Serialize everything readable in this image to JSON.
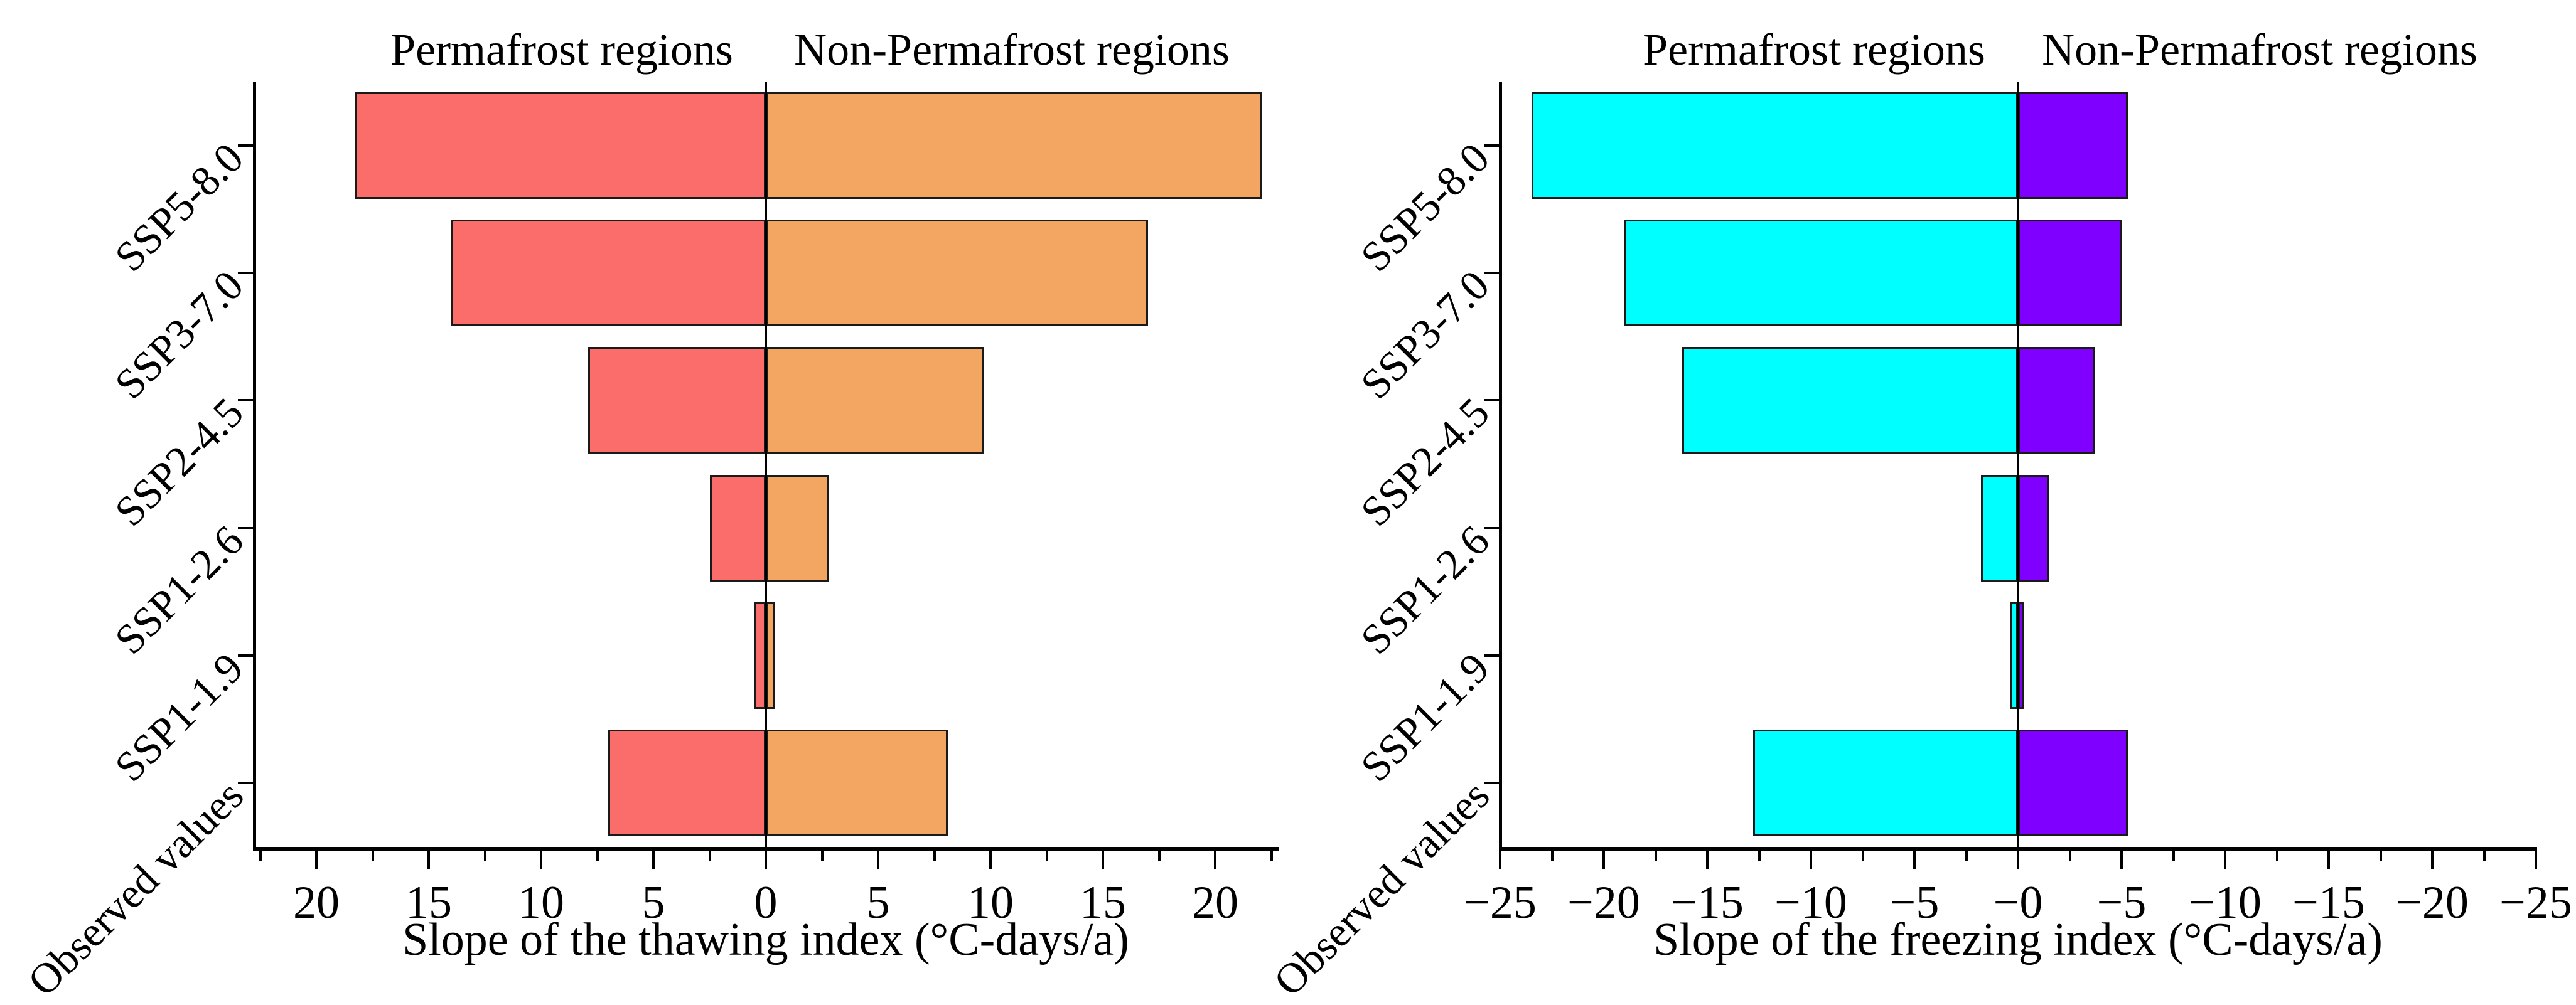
{
  "page": {
    "background": "#ffffff"
  },
  "colors": {
    "ink": "#000000",
    "bar_border": "#1a1a1a",
    "thaw_permafrost": "#FA6D6B",
    "thaw_non_permafrost": "#F3A661",
    "freeze_permafrost": "#00FFFF",
    "freeze_non_permafrost": "#7F00FF"
  },
  "chart_data": [
    {
      "type": "bar",
      "variant": "diverging-horizontal",
      "group_labels": [
        "Permafrost regions",
        "Non-Permafrost regions"
      ],
      "xlabel": "Slope of the thawing index (°C-days/a)",
      "categories": [
        "SSP5-8.0",
        "SSP3-7.0",
        "SSP2-4.5",
        "SSP1-2.6",
        "SSP1-1.9",
        "Observed values"
      ],
      "categories_order": "top-to-bottom",
      "series": [
        {
          "name": "Permafrost regions",
          "side": "left",
          "color": "#FA6D6B",
          "values": [
            18.3,
            14.0,
            7.9,
            2.5,
            0.5,
            7.0
          ]
        },
        {
          "name": "Non-Permafrost regions",
          "side": "right",
          "color": "#F3A661",
          "values": [
            22.1,
            17.0,
            9.7,
            2.8,
            0.4,
            8.1
          ]
        }
      ],
      "x_tick_labels": [
        "20",
        "15",
        "10",
        "5",
        "0",
        "5",
        "10",
        "15",
        "20"
      ],
      "x_major_step": 5,
      "x_minor_step": 2.5,
      "xlim_abs": 22.8,
      "axis_note": "mirrored absolute-value axis, 0 at center",
      "grid": false,
      "legend": "none"
    },
    {
      "type": "bar",
      "variant": "diverging-horizontal",
      "group_labels": [
        "Permafrost regions",
        "Non-Permafrost regions"
      ],
      "xlabel": "Slope of the freezing index (°C-days/a)",
      "categories": [
        "SSP5-8.0",
        "SSP3-7.0",
        "SSP2-4.5",
        "SSP1-2.6",
        "SSP1-1.9",
        "Observed values"
      ],
      "categories_order": "top-to-bottom",
      "series": [
        {
          "name": "Permafrost regions",
          "side": "left",
          "color": "#00FFFF",
          "values": [
            -23.5,
            -19.0,
            -16.2,
            -1.8,
            -0.4,
            -12.8
          ]
        },
        {
          "name": "Non-Permafrost regions",
          "side": "right",
          "color": "#7F00FF",
          "values": [
            -5.3,
            -5.0,
            -3.7,
            -1.5,
            -0.3,
            -5.3
          ]
        }
      ],
      "x_tick_labels": [
        "−25",
        "−20",
        "−15",
        "−10",
        "−5",
        "−0",
        "−5",
        "−10",
        "−15",
        "−20",
        "−25"
      ],
      "x_major_step": 5,
      "x_minor_step": 2.5,
      "xlim_abs": 25,
      "axis_note": "mirrored negative-value axis, −0 at center",
      "grid": false,
      "legend": "none"
    }
  ]
}
